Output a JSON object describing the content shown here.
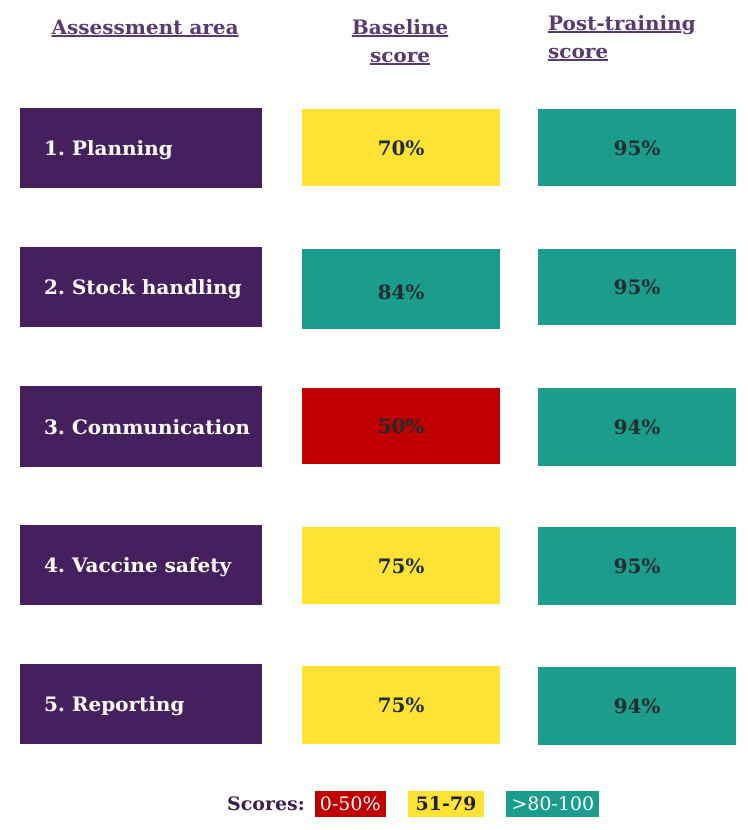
{
  "headers": {
    "area": "Assessment area",
    "baseline": "Baseline score",
    "post": "Post-training score"
  },
  "colors": {
    "area": "#46205e",
    "red": "#c00000",
    "yellow": "#ffe234",
    "teal": "#1b9c8c"
  },
  "rows": [
    {
      "area": "1. Planning",
      "baseline": "70%",
      "baseline_color": "yellow",
      "post": "95%",
      "post_color": "teal"
    },
    {
      "area": "2. Stock handling",
      "baseline": "84%",
      "baseline_color": "teal",
      "post": "95%",
      "post_color": "teal"
    },
    {
      "area": "3. Communication",
      "baseline": "50%",
      "baseline_color": "red",
      "post": "94%",
      "post_color": "teal"
    },
    {
      "area": "4. Vaccine safety",
      "baseline": "75%",
      "baseline_color": "yellow",
      "post": "95%",
      "post_color": "teal"
    },
    {
      "area": "5. Reporting",
      "baseline": "75%",
      "baseline_color": "yellow",
      "post": "94%",
      "post_color": "teal"
    }
  ],
  "legend": {
    "label": "Scores:",
    "items": [
      {
        "text": "0-50%",
        "color": "red"
      },
      {
        "text": "51-79",
        "color": "yellow"
      },
      {
        "text": ">80-100",
        "color": "teal"
      }
    ]
  }
}
